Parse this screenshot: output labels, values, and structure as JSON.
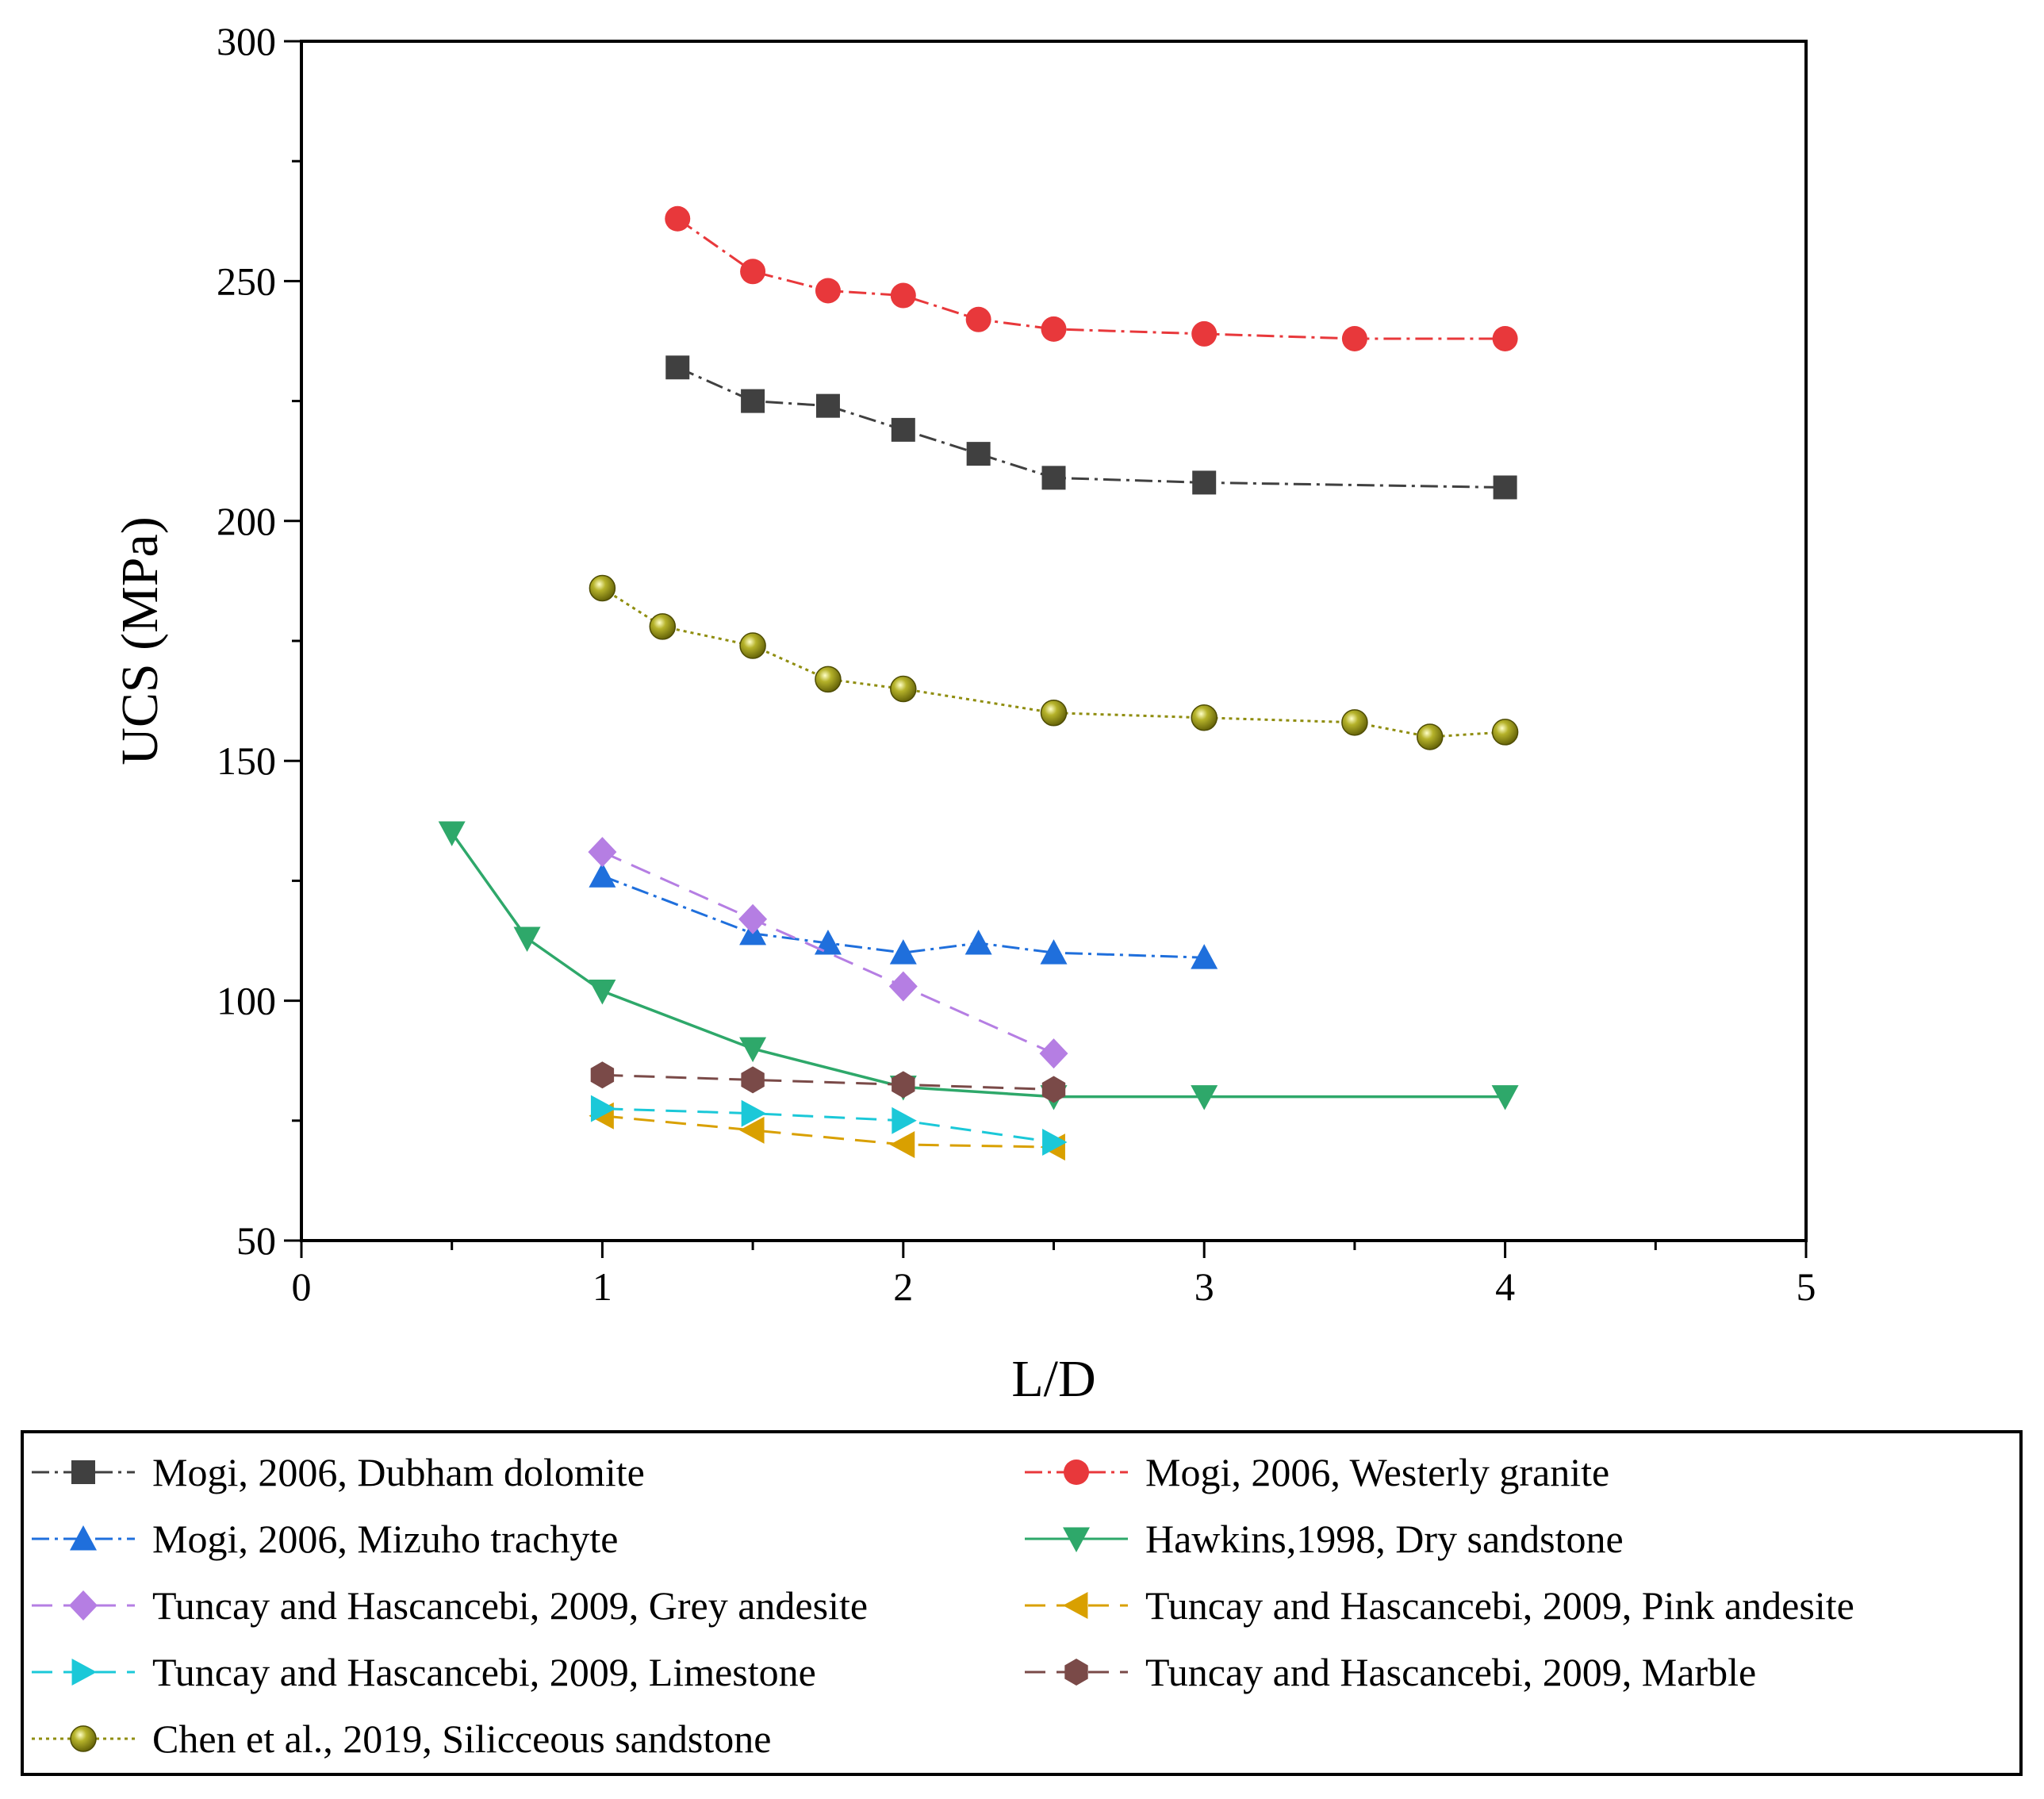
{
  "chart_data": {
    "type": "line",
    "title": "",
    "xlabel": "L/D",
    "ylabel": "UCS (MPa)",
    "xlim": [
      0,
      5
    ],
    "ylim": [
      50,
      300
    ],
    "x_ticks": [
      0,
      1,
      2,
      3,
      4,
      5
    ],
    "y_ticks": [
      50,
      100,
      150,
      200,
      250,
      300
    ],
    "x_tick_labels": [
      "0",
      "1",
      "2",
      "3",
      "4",
      "5"
    ],
    "y_tick_labels": [
      "50",
      "100",
      "150",
      "200",
      "250",
      "300"
    ],
    "grid": false,
    "legend_position": "bottom",
    "series": [
      {
        "name": "Mogi, 2006, Dubham dolomite",
        "color": "#404040",
        "marker": "square",
        "line": "dashdot",
        "x": [
          1.25,
          1.5,
          1.75,
          2.0,
          2.25,
          2.5,
          3.0,
          4.0
        ],
        "y": [
          232,
          225,
          224,
          219,
          214,
          209,
          208,
          207
        ]
      },
      {
        "name": "Mogi, 2006, Westerly granite",
        "color": "#e8383b",
        "marker": "circle",
        "line": "dashdot",
        "x": [
          1.25,
          1.5,
          1.75,
          2.0,
          2.25,
          2.5,
          3.0,
          3.5,
          4.0
        ],
        "y": [
          263,
          252,
          248,
          247,
          242,
          240,
          239,
          238,
          238
        ]
      },
      {
        "name": "Mogi, 2006, Mizuho trachyte",
        "color": "#1f6fdc",
        "marker": "triangle-up",
        "line": "dashdot",
        "x": [
          1.0,
          1.5,
          1.75,
          2.0,
          2.25,
          2.5,
          3.0
        ],
        "y": [
          126,
          114,
          112,
          110,
          112,
          110,
          109
        ]
      },
      {
        "name": "Hawkins,1998, Dry sandstone",
        "color": "#2ea86a",
        "marker": "triangle-down",
        "line": "solid",
        "x": [
          0.5,
          0.75,
          1.0,
          1.5,
          2.0,
          2.5,
          3.0,
          4.0
        ],
        "y": [
          135,
          113,
          102,
          90,
          82,
          80,
          80,
          80
        ]
      },
      {
        "name": "Tuncay and Hascancebi, 2009, Grey andesite",
        "color": "#b57ee3",
        "marker": "diamond",
        "line": "dashed",
        "x": [
          1.0,
          1.5,
          2.0,
          2.5
        ],
        "y": [
          131,
          117,
          103,
          89
        ]
      },
      {
        "name": "Tuncay and Hascancebi, 2009, Pink andesite",
        "color": "#d9a000",
        "marker": "triangle-left",
        "line": "dashed",
        "x": [
          1.0,
          1.5,
          2.0,
          2.5
        ],
        "y": [
          76,
          73,
          70,
          69.5
        ]
      },
      {
        "name": "Tuncay and Hascancebi, 2009, Limestone",
        "color": "#1bc8d8",
        "marker": "triangle-right",
        "line": "dashed",
        "x": [
          1.0,
          1.5,
          2.0,
          2.5
        ],
        "y": [
          77.5,
          76.5,
          75,
          70.5
        ]
      },
      {
        "name": "Tuncay and Hascancebi, 2009, Marble",
        "color": "#7a4a48",
        "marker": "hexagon",
        "line": "dashed",
        "x": [
          1.0,
          1.5,
          2.0,
          2.5
        ],
        "y": [
          84.5,
          83.5,
          82.5,
          81.5
        ]
      },
      {
        "name": "Chen et al., 2019, Silicceous sandstone",
        "color": "#8f8d0e",
        "marker": "sphere",
        "line": "dotted",
        "x": [
          1.0,
          1.2,
          1.5,
          1.75,
          2.0,
          2.5,
          3.0,
          3.5,
          3.75,
          4.0
        ],
        "y": [
          186,
          178,
          174,
          167,
          165,
          160,
          159,
          158,
          155,
          156
        ]
      }
    ]
  }
}
